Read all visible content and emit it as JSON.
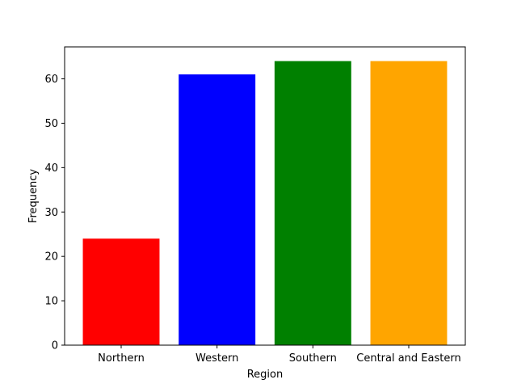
{
  "chart_data": {
    "type": "bar",
    "title": "",
    "xlabel": "Region",
    "ylabel": "Frequency",
    "categories": [
      "Northern",
      "Western",
      "Southern",
      "Central and Eastern"
    ],
    "values": [
      24,
      61,
      64,
      64
    ],
    "colors": [
      "#ff0000",
      "#0000ff",
      "#008000",
      "#ffa500"
    ],
    "ylim": [
      0,
      67.2
    ],
    "yticks": [
      0,
      10,
      20,
      30,
      40,
      50,
      60
    ],
    "grid": false,
    "legend": "none"
  }
}
